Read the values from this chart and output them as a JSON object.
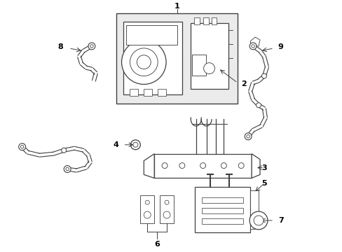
{
  "background_color": "#ffffff",
  "line_color": "#404040",
  "label_fontsize": 8,
  "box_fill": "#f0f0f0",
  "part_fill": "#e8e8e8",
  "lw": 0.9
}
